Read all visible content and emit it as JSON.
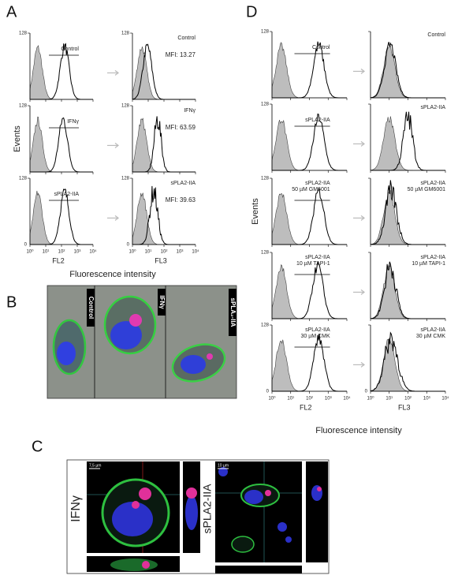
{
  "panel_a": {
    "letter": "A",
    "y_axis_label": "Events",
    "x_axis_label": "Fluorescence intensity",
    "channels": [
      "FL2",
      "FL3"
    ],
    "y_max_label": "128",
    "y_min_label": "0",
    "x_tick_labels": [
      "10⁰",
      "10¹",
      "10²",
      "10³",
      "10⁴"
    ],
    "rows": [
      {
        "left_label": "Control",
        "right_label": "Control",
        "mfi": "MFI: 13.27"
      },
      {
        "left_label": "IFNγ",
        "right_label": "IFNγ",
        "mfi": "MFI: 63.59"
      },
      {
        "left_label": "sPLA2-IIA",
        "right_label": "sPLA2-IIA",
        "mfi": "MFI: 39.63"
      }
    ]
  },
  "panel_b": {
    "letter": "B",
    "labels": [
      "Control",
      "IFNγ",
      "sPLA₂-IIA"
    ]
  },
  "panel_c": {
    "letter": "C",
    "labels": [
      "IFNγ",
      "sPLA2-IIA"
    ],
    "scale_bars": [
      "7,5 µm",
      "10 µm"
    ]
  },
  "panel_d": {
    "letter": "D",
    "y_axis_label": "Events",
    "x_axis_label": "Fluorescence intensity",
    "channels": [
      "FL2",
      "FL3"
    ],
    "y_max_label": "128",
    "y_min_label": "0",
    "x_tick_labels": [
      "10⁰",
      "10¹",
      "10²",
      "10³",
      "10⁴"
    ],
    "rows": [
      {
        "left_label": [
          "Control"
        ],
        "right_label": [
          "Control"
        ]
      },
      {
        "left_label": [
          "sPLA2-IIA"
        ],
        "right_label": [
          "sPLA2-IIA"
        ]
      },
      {
        "left_label": [
          "sPLA2-IIA",
          "50 µM GM6001"
        ],
        "right_label": [
          "sPLA2-IIA",
          "50 µM GM6001"
        ]
      },
      {
        "left_label": [
          "sPLA2-IIA",
          "10 µM TAPI-1"
        ],
        "right_label": [
          "sPLA2-IIA",
          "10 µM TAPI-1"
        ]
      },
      {
        "left_label": [
          "sPLA2-IIA",
          "30 µM CMK"
        ],
        "right_label": [
          "sPLA2-IIA",
          "30 µM CMK"
        ]
      }
    ]
  }
}
